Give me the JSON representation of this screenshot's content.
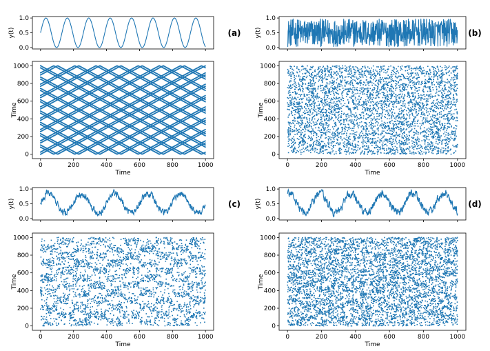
{
  "colors": {
    "series": "#1f77b4",
    "axis": "#000000",
    "background": "#ffffff"
  },
  "chart_data": [
    {
      "panel": "(a)",
      "top": {
        "type": "line",
        "ylabel": "y(t)",
        "xlim": [
          0,
          1000
        ],
        "ylim": [
          0.0,
          1.0
        ],
        "yticks": [
          "0.0",
          "0.5",
          "1.0"
        ],
        "pattern": "sine",
        "periods": 7.7,
        "phase": 0.0,
        "noise": 0.0,
        "n": 1000
      },
      "bottom": {
        "type": "scatter",
        "xlabel": "Time",
        "ylabel": "Time",
        "xlim": [
          0,
          1000
        ],
        "ylim": [
          0,
          1000
        ],
        "xticks": [
          "0",
          "200",
          "400",
          "600",
          "800",
          "1000"
        ],
        "yticks": [
          "0",
          "200",
          "400",
          "600",
          "800",
          "1000"
        ],
        "pattern": "lattice"
      }
    },
    {
      "panel": "(b)",
      "top": {
        "type": "line",
        "ylabel": "y(t)",
        "xlim": [
          0,
          1000
        ],
        "ylim": [
          0.0,
          1.0
        ],
        "yticks": [
          "0.0",
          "0.5",
          "1.0"
        ],
        "pattern": "random",
        "n": 600
      },
      "bottom": {
        "type": "scatter",
        "xlabel": "Time",
        "ylabel": "Time",
        "xlim": [
          0,
          1000
        ],
        "ylim": [
          0,
          1000
        ],
        "xticks": [
          "0",
          "200",
          "400",
          "600",
          "800",
          "1000"
        ],
        "yticks": [
          "0",
          "200",
          "400",
          "600",
          "800",
          "1000"
        ],
        "pattern": "random"
      }
    },
    {
      "panel": "(c)",
      "top": {
        "type": "line",
        "ylabel": "y(t)",
        "xlim": [
          0,
          1000
        ],
        "ylim": [
          0.0,
          1.0
        ],
        "yticks": [
          "0.0",
          "0.5",
          "1.0"
        ],
        "pattern": "noisy-sine",
        "periods": 5.0,
        "phase": 0.0,
        "noise": 0.12,
        "n": 700
      },
      "bottom": {
        "type": "scatter",
        "xlabel": "Time",
        "ylabel": "Time",
        "xlim": [
          0,
          1000
        ],
        "ylim": [
          0,
          1000
        ],
        "xticks": [
          "0",
          "200",
          "400",
          "600",
          "800",
          "1000"
        ],
        "yticks": [
          "0",
          "200",
          "400",
          "600",
          "800",
          "1000"
        ],
        "pattern": "noisy-blocks"
      }
    },
    {
      "panel": "(d)",
      "top": {
        "type": "line",
        "ylabel": "y(t)",
        "xlim": [
          0,
          1000
        ],
        "ylim": [
          0.0,
          1.0
        ],
        "yticks": [
          "0.0",
          "0.5",
          "1.0"
        ],
        "pattern": "noisy-sine",
        "periods": 5.5,
        "phase": 1.2,
        "noise": 0.15,
        "n": 700
      },
      "bottom": {
        "type": "scatter",
        "xlabel": "Time",
        "ylabel": "Time",
        "xlim": [
          0,
          1000
        ],
        "ylim": [
          0,
          1000
        ],
        "xticks": [
          "0",
          "200",
          "400",
          "600",
          "800",
          "1000"
        ],
        "yticks": [
          "0",
          "200",
          "400",
          "600",
          "800",
          "1000"
        ],
        "pattern": "dense-noisy-blocks"
      }
    }
  ]
}
